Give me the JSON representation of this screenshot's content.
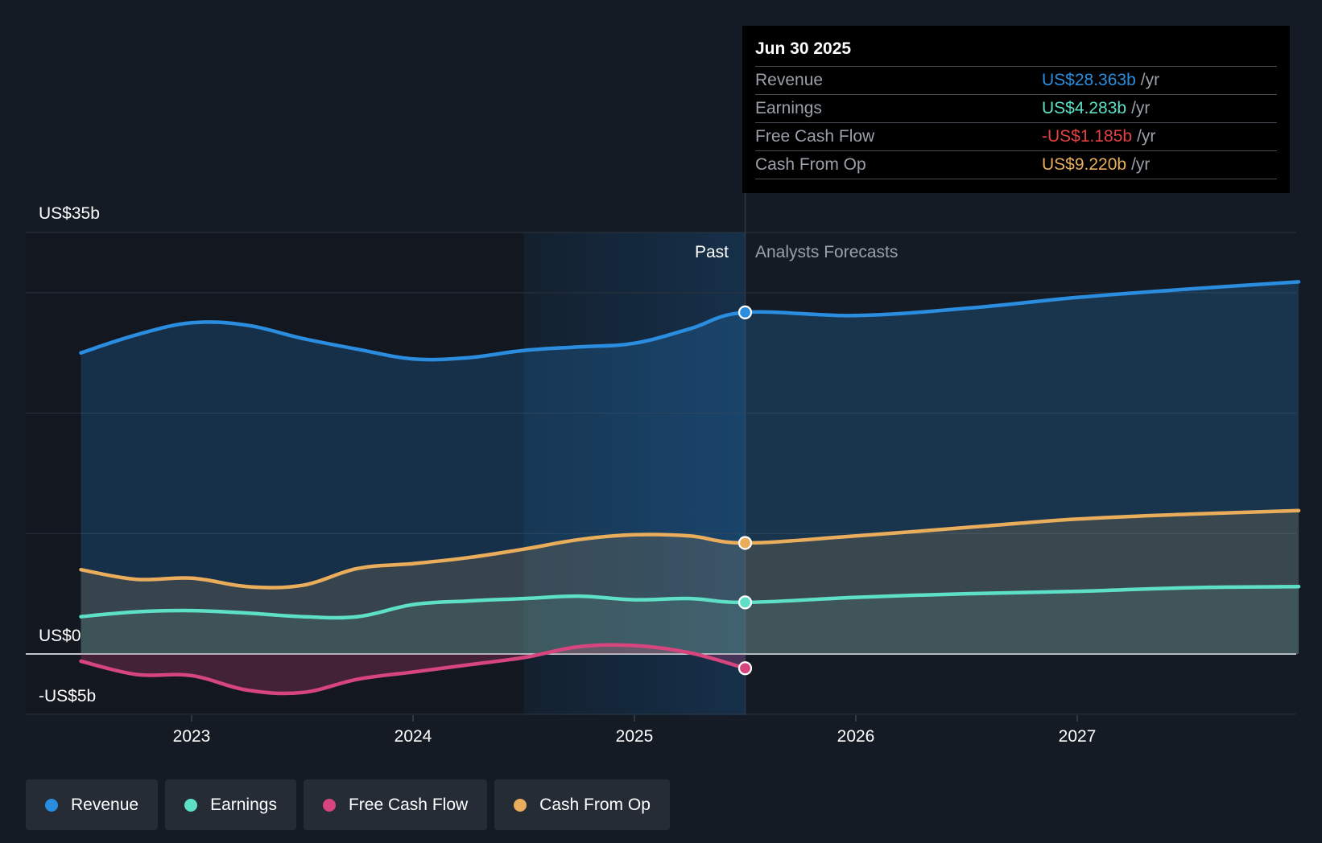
{
  "chart_data": {
    "type": "area",
    "y_axis_labels": {
      "top": "US$35b",
      "zero": "US$0",
      "bottom": "-US$5b"
    },
    "ylim": [
      -5,
      35
    ],
    "x_ticks": [
      {
        "label": "2023",
        "x": 2023.0
      },
      {
        "label": "2024",
        "x": 2024.0
      },
      {
        "label": "2025",
        "x": 2025.0
      },
      {
        "label": "2026",
        "x": 2026.0
      },
      {
        "label": "2027",
        "x": 2027.0
      }
    ],
    "xlim": [
      2022.3,
      2028.0
    ],
    "region_labels": {
      "past": "Past",
      "forecast": "Analysts Forecasts"
    },
    "highlight_start": 2024.5,
    "past_end": 2025.5,
    "series": [
      {
        "name": "Revenue",
        "color": "#2a8de0",
        "points": [
          [
            2022.5,
            25.0
          ],
          [
            2022.75,
            26.5
          ],
          [
            2023.0,
            27.5
          ],
          [
            2023.25,
            27.3
          ],
          [
            2023.5,
            26.2
          ],
          [
            2023.75,
            25.3
          ],
          [
            2024.0,
            24.5
          ],
          [
            2024.25,
            24.6
          ],
          [
            2024.5,
            25.2
          ],
          [
            2024.75,
            25.5
          ],
          [
            2025.0,
            25.8
          ],
          [
            2025.25,
            27.0
          ],
          [
            2025.5,
            28.363
          ],
          [
            2026.0,
            28.1
          ],
          [
            2026.5,
            28.7
          ],
          [
            2027.0,
            29.6
          ],
          [
            2027.5,
            30.3
          ],
          [
            2028.0,
            30.9
          ]
        ]
      },
      {
        "name": "Earnings",
        "color": "#5ee0c6",
        "points": [
          [
            2022.5,
            3.1
          ],
          [
            2022.75,
            3.5
          ],
          [
            2023.0,
            3.6
          ],
          [
            2023.25,
            3.4
          ],
          [
            2023.5,
            3.1
          ],
          [
            2023.75,
            3.1
          ],
          [
            2024.0,
            4.1
          ],
          [
            2024.25,
            4.4
          ],
          [
            2024.5,
            4.6
          ],
          [
            2024.75,
            4.8
          ],
          [
            2025.0,
            4.5
          ],
          [
            2025.25,
            4.6
          ],
          [
            2025.5,
            4.283
          ],
          [
            2026.0,
            4.7
          ],
          [
            2026.5,
            5.0
          ],
          [
            2027.0,
            5.2
          ],
          [
            2027.5,
            5.5
          ],
          [
            2028.0,
            5.6
          ]
        ]
      },
      {
        "name": "Free Cash Flow",
        "color": "#d6457e",
        "points": [
          [
            2022.5,
            -0.6
          ],
          [
            2022.75,
            -1.7
          ],
          [
            2023.0,
            -1.8
          ],
          [
            2023.25,
            -3.0
          ],
          [
            2023.5,
            -3.2
          ],
          [
            2023.75,
            -2.1
          ],
          [
            2024.0,
            -1.5
          ],
          [
            2024.25,
            -0.9
          ],
          [
            2024.5,
            -0.3
          ],
          [
            2024.75,
            0.6
          ],
          [
            2025.0,
            0.7
          ],
          [
            2025.25,
            0.1
          ],
          [
            2025.5,
            -1.185
          ]
        ]
      },
      {
        "name": "Cash From Op",
        "color": "#e9ad5b",
        "points": [
          [
            2022.5,
            7.0
          ],
          [
            2022.75,
            6.2
          ],
          [
            2023.0,
            6.3
          ],
          [
            2023.25,
            5.6
          ],
          [
            2023.5,
            5.7
          ],
          [
            2023.75,
            7.1
          ],
          [
            2024.0,
            7.5
          ],
          [
            2024.25,
            8.0
          ],
          [
            2024.5,
            8.7
          ],
          [
            2024.75,
            9.5
          ],
          [
            2025.0,
            9.9
          ],
          [
            2025.25,
            9.8
          ],
          [
            2025.5,
            9.22
          ],
          [
            2026.0,
            9.8
          ],
          [
            2026.5,
            10.5
          ],
          [
            2027.0,
            11.2
          ],
          [
            2027.5,
            11.6
          ],
          [
            2028.0,
            11.9
          ]
        ]
      }
    ]
  },
  "tooltip": {
    "date": "Jun 30 2025",
    "rows": [
      {
        "label": "Revenue",
        "value": "US$28.363b",
        "unit": "/yr",
        "color": "#2a8de0"
      },
      {
        "label": "Earnings",
        "value": "US$4.283b",
        "unit": "/yr",
        "color": "#5ee0c6"
      },
      {
        "label": "Free Cash Flow",
        "value": "-US$1.185b",
        "unit": "/yr",
        "color": "#e64141"
      },
      {
        "label": "Cash From Op",
        "value": "US$9.220b",
        "unit": "/yr",
        "color": "#e9ad5b"
      }
    ]
  },
  "legend": [
    {
      "label": "Revenue",
      "color": "#2a8de0"
    },
    {
      "label": "Earnings",
      "color": "#5ee0c6"
    },
    {
      "label": "Free Cash Flow",
      "color": "#d6457e"
    },
    {
      "label": "Cash From Op",
      "color": "#e9ad5b"
    }
  ]
}
